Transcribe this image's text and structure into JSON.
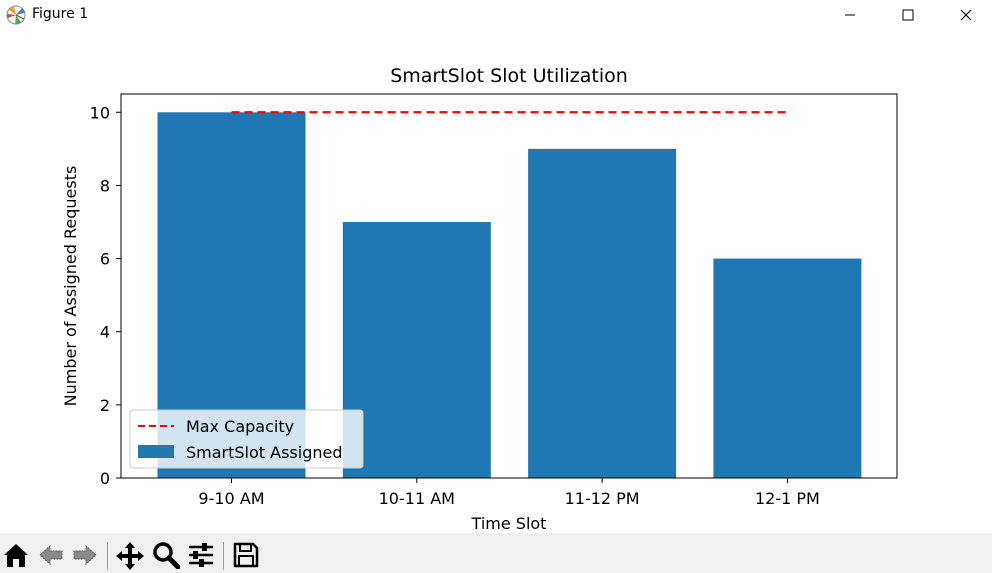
{
  "window": {
    "title": "Figure 1"
  },
  "toolbar": {
    "tools": [
      {
        "icon": "home-icon"
      },
      {
        "icon": "back-arrow-icon"
      },
      {
        "icon": "forward-arrow-icon"
      },
      {
        "icon": "pan-move-icon"
      },
      {
        "icon": "zoom-magnifier-icon"
      },
      {
        "icon": "configure-subplots-icon"
      },
      {
        "icon": "save-disk-icon"
      }
    ]
  },
  "chart_data": {
    "type": "bar",
    "title": "SmartSlot Slot Utilization",
    "xlabel": "Time Slot",
    "ylabel": "Number of Assigned Requests",
    "categories": [
      "9-10 AM",
      "10-11 AM",
      "11-12 PM",
      "12-1 PM"
    ],
    "series": [
      {
        "name": "SmartSlot Assigned",
        "values": [
          10,
          7,
          9,
          6
        ],
        "color": "#1f77b4"
      }
    ],
    "reference_line": {
      "name": "Max Capacity",
      "value": 10,
      "color": "#ff0000",
      "style": "dashed"
    },
    "ylim": [
      0,
      10.5
    ],
    "yticks": [
      "0",
      "2",
      "4",
      "6",
      "8",
      "10"
    ],
    "grid": false,
    "legend_position": "lower-left",
    "legend": [
      "Max Capacity",
      "SmartSlot Assigned"
    ]
  }
}
